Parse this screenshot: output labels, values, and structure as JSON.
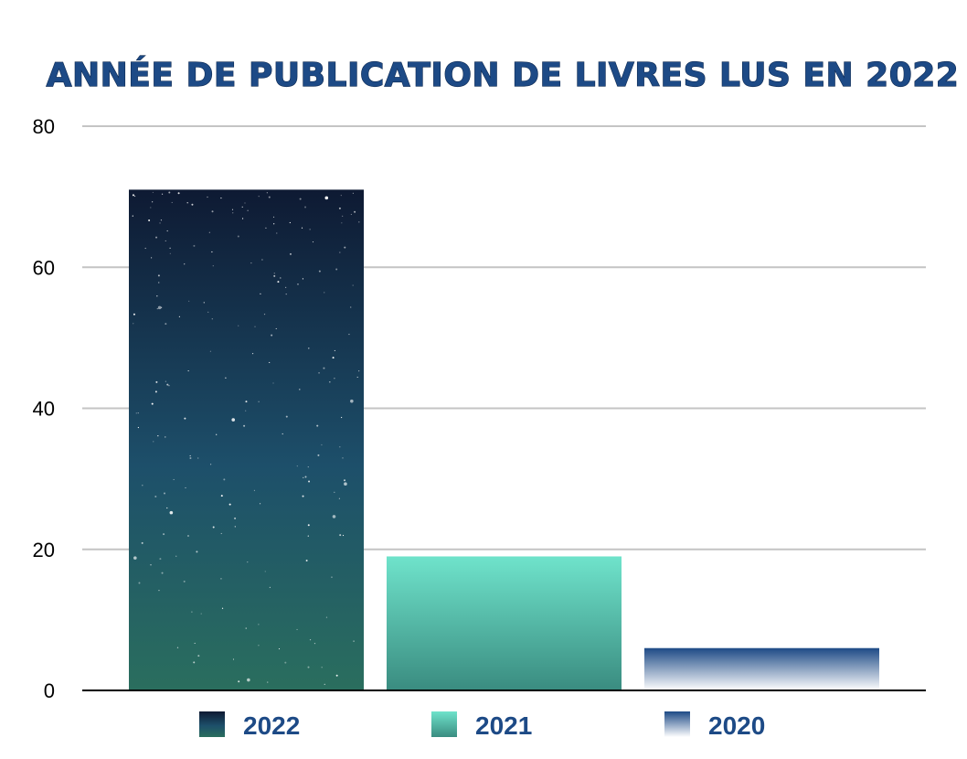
{
  "chart_data": {
    "type": "bar",
    "title": "ANNÉE DE PUBLICATION DE LIVRES LUS EN 2022",
    "xlabel": "",
    "ylabel": "",
    "categories": [
      "2022",
      "2021",
      "2020"
    ],
    "values": [
      71,
      19,
      6
    ],
    "ylim": [
      0,
      80
    ],
    "yticks": [
      0,
      20,
      40,
      60,
      80
    ],
    "grid": true,
    "legend_position": "bottom",
    "legend": [
      "2022",
      "2021",
      "2020"
    ],
    "colors": {
      "2022": [
        "#0e1a33",
        "#1d4f6a",
        "#2a6e5e"
      ],
      "2021": [
        "#6fe3cb",
        "#3a8c80"
      ],
      "2020": [
        "#1d4a86",
        "#ffffff"
      ],
      "title": "#1d4a86",
      "gridline": "#c4c4c4",
      "axis": "#000000"
    }
  }
}
